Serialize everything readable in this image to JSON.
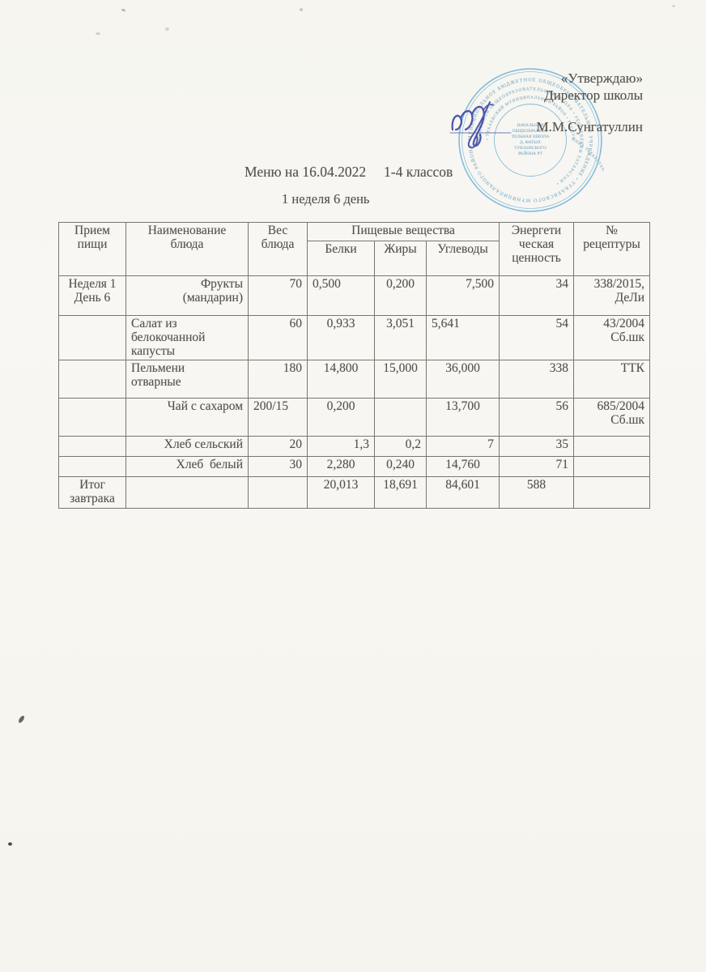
{
  "colors": {
    "page_bg": "#f7f6f1",
    "text": "#54524e",
    "table_border": "#78766f",
    "stamp_blue": "#7cb6d9",
    "signature_ink": "#3c48a4"
  },
  "approval": {
    "quote": "«Утверждаю»",
    "role": "Директор школы",
    "name": "М.М.Сунгатуллин",
    "stamp": {
      "ring_outer": "МУНИЦИПАЛЬНОЕ БЮДЖЕТНОЕ ОБЩЕОБРАЗОВАТЕЛЬНОЕ УЧРЕЖДЕНИЕ • ТУКАЕВСКОГО МУНИЦИПАЛЬНОГО РАЙОНА •",
      "ring_middle": "ОСНОВНАЯ ОБЩЕОБРАЗОВАТЕЛЬНАЯ ШКОЛА • РЕСПУБЛИКИ ТАТАРСТАН •",
      "ring_inner": "• ТУКАЕВСКИЙ МУНИЦИПАЛЬНЫЙ РАЙОН • РЕСПУБЛИКА ТАТАРСТАН",
      "center_lines": [
        "НАЧАЛЬНАЯ",
        "ОБЩЕОБРАЗОВА-",
        "ТЕЛЬНАЯ ШКОЛА",
        "Д. ФАТЫХ",
        "ТУКАЕВСКОГО",
        "РАЙОНА РТ"
      ]
    }
  },
  "title": "Меню на 16.04.2022     1-4 классов",
  "subtitle": "1 неделя 6 день",
  "table": {
    "header": {
      "meal": "Прием\nпищи",
      "dish": "Наименование\nблюда",
      "weight": "Вес\nблюда",
      "nutrients_group": "Пищевые вещества",
      "protein": "Белки",
      "fat": "Жиры",
      "carbs": "Углеводы",
      "energy": "Энергети\nческая\nценность",
      "recipe": "№\nрецептуры"
    },
    "rows": [
      {
        "cells": [
          {
            "t": "Неделя 1\nДень 6",
            "a": "c"
          },
          {
            "t": "Фрукты\n(мандарин)",
            "a": "r"
          },
          {
            "t": "70",
            "a": "r"
          },
          {
            "t": "0,500",
            "a": "l"
          },
          {
            "t": "0,200",
            "a": "c"
          },
          {
            "t": "7,500",
            "a": "r"
          },
          {
            "t": "34",
            "a": "r"
          },
          {
            "t": "338/2015,\nДеЛи",
            "a": "r"
          }
        ]
      },
      {
        "cells": [
          {
            "t": "",
            "a": "c"
          },
          {
            "t": "Салат из\nбелокочанной\nкапусты",
            "a": "l"
          },
          {
            "t": "60",
            "a": "r"
          },
          {
            "t": "0,933",
            "a": "c"
          },
          {
            "t": "3,051",
            "a": "c"
          },
          {
            "t": "5,641",
            "a": "l"
          },
          {
            "t": "54",
            "a": "r"
          },
          {
            "t": "43/2004\nСб.шк",
            "a": "r"
          }
        ]
      },
      {
        "cells": [
          {
            "t": "",
            "a": "c"
          },
          {
            "t": "Пельмени\nотварные",
            "a": "l"
          },
          {
            "t": "180",
            "a": "r"
          },
          {
            "t": "14,800",
            "a": "c"
          },
          {
            "t": "15,000",
            "a": "c"
          },
          {
            "t": "36,000",
            "a": "c"
          },
          {
            "t": "338",
            "a": "r"
          },
          {
            "t": "ТТК",
            "a": "r"
          }
        ]
      },
      {
        "cells": [
          {
            "t": "",
            "a": "c"
          },
          {
            "t": "Чай с сахаром",
            "a": "r"
          },
          {
            "t": "200/15",
            "a": "l"
          },
          {
            "t": "0,200",
            "a": "c"
          },
          {
            "t": "",
            "a": "c"
          },
          {
            "t": "13,700",
            "a": "c"
          },
          {
            "t": "56",
            "a": "r"
          },
          {
            "t": "685/2004\nСб.шк",
            "a": "r"
          }
        ]
      },
      {
        "cells": [
          {
            "t": "",
            "a": "c"
          },
          {
            "t": "Хлеб сельский",
            "a": "r"
          },
          {
            "t": "20",
            "a": "r"
          },
          {
            "t": "1,3",
            "a": "r"
          },
          {
            "t": "0,2",
            "a": "r"
          },
          {
            "t": "7",
            "a": "r"
          },
          {
            "t": "35",
            "a": "r"
          },
          {
            "t": "",
            "a": "c"
          }
        ]
      },
      {
        "cells": [
          {
            "t": "",
            "a": "c"
          },
          {
            "t": "Хлеб  белый",
            "a": "r"
          },
          {
            "t": "30",
            "a": "r"
          },
          {
            "t": "2,280",
            "a": "c"
          },
          {
            "t": "0,240",
            "a": "c"
          },
          {
            "t": "14,760",
            "a": "c"
          },
          {
            "t": "71",
            "a": "r"
          },
          {
            "t": "",
            "a": "c"
          }
        ]
      },
      {
        "cells": [
          {
            "t": "Итог\nзавтрака",
            "a": "c"
          },
          {
            "t": "",
            "a": "c"
          },
          {
            "t": "",
            "a": "c"
          },
          {
            "t": "20,013",
            "a": "c"
          },
          {
            "t": "18,691",
            "a": "c"
          },
          {
            "t": "84,601",
            "a": "c"
          },
          {
            "t": "588",
            "a": "c"
          },
          {
            "t": "",
            "a": "c"
          }
        ]
      }
    ]
  }
}
